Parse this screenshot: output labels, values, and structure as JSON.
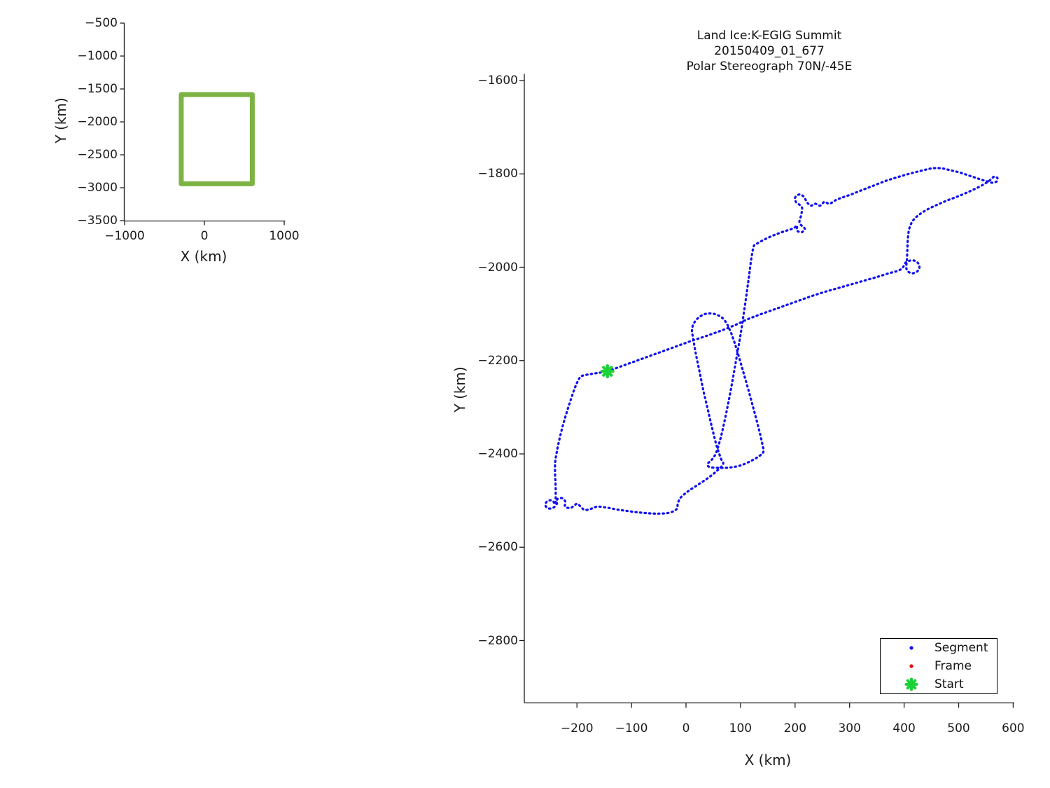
{
  "window": {
    "background": "#ffffff",
    "text_color": "#1c1c1c"
  },
  "main": {
    "title": [
      "Land Ice:K-EGIG Summit",
      "20150409_01_677",
      "Polar Stereograph 70N/-45E"
    ],
    "xlabel": "X (km)",
    "ylabel": "Y (km)"
  },
  "overview": {
    "xlabel": "X (km)",
    "ylabel": "Y (km)"
  },
  "legend": {
    "items": [
      {
        "label": "Segment",
        "marker": "dot",
        "color": "#1111EE"
      },
      {
        "label": "Frame",
        "marker": "dot",
        "color": "#E80000"
      },
      {
        "label": "Start",
        "marker": "asterisk",
        "color": "#1BD237"
      }
    ]
  },
  "chart_data": [
    {
      "id": "overview-map",
      "type": "line",
      "title": "",
      "xlabel": "X (km)",
      "ylabel": "Y (km)",
      "xlim": [
        -1000,
        1010
      ],
      "ylim": [
        -3500,
        -500
      ],
      "grid": false,
      "x_ticks": [
        {
          "value": -1000,
          "label": "−1000"
        },
        {
          "value": 0,
          "label": "0"
        },
        {
          "value": 1000,
          "label": "1000"
        }
      ],
      "y_ticks": [
        {
          "value": -500,
          "label": "−500"
        },
        {
          "value": -1000,
          "label": "−1000"
        },
        {
          "value": -1500,
          "label": "−1500"
        },
        {
          "value": -2000,
          "label": "−2000"
        },
        {
          "value": -2500,
          "label": "−2500"
        },
        {
          "value": -3000,
          "label": "−3000"
        },
        {
          "value": -3500,
          "label": "−3500"
        }
      ],
      "series": [
        {
          "name": "coverage-box",
          "color": "#7CB342",
          "linewidth": 7,
          "closed": true,
          "smooth": false,
          "dotted": false,
          "points": [
            [
              -290,
              -1585
            ],
            [
              600,
              -1585
            ],
            [
              600,
              -2940
            ],
            [
              -290,
              -2940
            ]
          ]
        }
      ]
    },
    {
      "id": "flight-track",
      "type": "scatter-line",
      "title": "Land Ice:K-EGIG Summit 20150409_01_677 Polar Stereograph 70N/-45E",
      "xlabel": "X (km)",
      "ylabel": "Y (km)",
      "xlim": [
        -297,
        602
      ],
      "ylim": [
        -2935,
        -1586
      ],
      "grid": false,
      "legend_position": "southeast",
      "x_ticks": [
        {
          "value": -200,
          "label": "−200"
        },
        {
          "value": -100,
          "label": "−100"
        },
        {
          "value": 0,
          "label": "0"
        },
        {
          "value": 100,
          "label": "100"
        },
        {
          "value": 200,
          "label": "200"
        },
        {
          "value": 300,
          "label": "300"
        },
        {
          "value": 400,
          "label": "400"
        },
        {
          "value": 500,
          "label": "500"
        },
        {
          "value": 600,
          "label": "600"
        }
      ],
      "y_ticks": [
        {
          "value": -1600,
          "label": "−1600"
        },
        {
          "value": -1800,
          "label": "−1800"
        },
        {
          "value": -2000,
          "label": "−2000"
        },
        {
          "value": -2200,
          "label": "−2200"
        },
        {
          "value": -2400,
          "label": "−2400"
        },
        {
          "value": -2600,
          "label": "−2600"
        },
        {
          "value": -2800,
          "label": "−2800"
        }
      ],
      "series": [
        {
          "name": "Segment",
          "color": "#1111EE",
          "marker": "dot",
          "dotted": true,
          "smooth": true,
          "closed": false,
          "linewidth": 3.2,
          "points": [
            [
              -144,
              -2223
            ],
            [
              -118,
              -2212
            ],
            [
              -92,
              -2201
            ],
            [
              -66,
              -2190
            ],
            [
              -40,
              -2179
            ],
            [
              -14,
              -2168
            ],
            [
              12,
              -2157
            ],
            [
              38,
              -2147
            ],
            [
              64,
              -2136
            ],
            [
              90,
              -2124
            ],
            [
              112,
              -2112
            ],
            [
              134,
              -2102
            ],
            [
              158,
              -2092
            ],
            [
              182,
              -2082
            ],
            [
              206,
              -2072
            ],
            [
              230,
              -2062
            ],
            [
              254,
              -2053
            ],
            [
              278,
              -2045
            ],
            [
              302,
              -2037
            ],
            [
              326,
              -2029
            ],
            [
              350,
              -2021
            ],
            [
              372,
              -2013
            ],
            [
              390,
              -2007
            ],
            [
              398,
              -2000
            ],
            [
              402,
              -1991
            ],
            [
              410,
              -1986
            ],
            [
              419,
              -1986
            ],
            [
              426,
              -1992
            ],
            [
              428,
              -2001
            ],
            [
              424,
              -2009
            ],
            [
              415,
              -2013
            ],
            [
              407,
              -2009
            ],
            [
              404,
              -2001
            ],
            [
              405,
              -1985
            ],
            [
              406,
              -1960
            ],
            [
              407,
              -1936
            ],
            [
              410,
              -1915
            ],
            [
              417,
              -1899
            ],
            [
              428,
              -1887
            ],
            [
              443,
              -1876
            ],
            [
              461,
              -1866
            ],
            [
              481,
              -1856
            ],
            [
              501,
              -1847
            ],
            [
              521,
              -1837
            ],
            [
              539,
              -1827
            ],
            [
              551,
              -1819
            ],
            [
              559,
              -1812
            ],
            [
              565,
              -1806
            ],
            [
              571,
              -1809
            ],
            [
              570,
              -1816
            ],
            [
              562,
              -1819
            ],
            [
              552,
              -1816
            ],
            [
              538,
              -1811
            ],
            [
              520,
              -1804
            ],
            [
              502,
              -1797
            ],
            [
              484,
              -1792
            ],
            [
              468,
              -1788
            ],
            [
              452,
              -1788
            ],
            [
              436,
              -1792
            ],
            [
              412,
              -1799
            ],
            [
              388,
              -1807
            ],
            [
              364,
              -1816
            ],
            [
              340,
              -1827
            ],
            [
              320,
              -1836
            ],
            [
              303,
              -1844
            ],
            [
              288,
              -1850
            ],
            [
              275,
              -1856
            ],
            [
              263,
              -1864
            ],
            [
              254,
              -1860
            ],
            [
              246,
              -1868
            ],
            [
              237,
              -1864
            ],
            [
              229,
              -1868
            ],
            [
              222,
              -1861
            ],
            [
              216,
              -1849
            ],
            [
              208,
              -1844
            ],
            [
              200,
              -1851
            ],
            [
              202,
              -1861
            ],
            [
              209,
              -1867
            ],
            [
              213,
              -1874
            ],
            [
              211,
              -1889
            ],
            [
              208,
              -1904
            ],
            [
              213,
              -1912
            ],
            [
              218,
              -1918
            ],
            [
              212,
              -1925
            ],
            [
              203,
              -1921
            ],
            [
              204,
              -1911
            ],
            [
              196,
              -1917
            ],
            [
              178,
              -1924
            ],
            [
              160,
              -1932
            ],
            [
              143,
              -1941
            ],
            [
              128,
              -1951
            ],
            [
              124,
              -1956
            ],
            [
              120,
              -1980
            ],
            [
              116,
              -2015
            ],
            [
              112,
              -2050
            ],
            [
              107,
              -2090
            ],
            [
              102,
              -2130
            ],
            [
              97,
              -2165
            ],
            [
              91,
              -2205
            ],
            [
              85,
              -2245
            ],
            [
              78,
              -2288
            ],
            [
              71,
              -2328
            ],
            [
              63,
              -2368
            ],
            [
              55,
              -2398
            ],
            [
              47,
              -2413
            ],
            [
              40,
              -2421
            ],
            [
              43,
              -2428
            ],
            [
              62,
              -2430
            ],
            [
              82,
              -2429
            ],
            [
              102,
              -2424
            ],
            [
              121,
              -2414
            ],
            [
              135,
              -2404
            ],
            [
              142,
              -2395
            ],
            [
              140,
              -2379
            ],
            [
              133,
              -2344
            ],
            [
              124,
              -2304
            ],
            [
              114,
              -2261
            ],
            [
              104,
              -2220
            ],
            [
              94,
              -2180
            ],
            [
              85,
              -2148
            ],
            [
              79,
              -2131
            ],
            [
              74,
              -2119
            ],
            [
              65,
              -2107
            ],
            [
              51,
              -2100
            ],
            [
              36,
              -2100
            ],
            [
              23,
              -2108
            ],
            [
              14,
              -2121
            ],
            [
              11,
              -2135
            ],
            [
              12,
              -2145
            ],
            [
              18,
              -2185
            ],
            [
              25,
              -2225
            ],
            [
              32,
              -2265
            ],
            [
              40,
              -2305
            ],
            [
              48,
              -2345
            ],
            [
              56,
              -2382
            ],
            [
              64,
              -2410
            ],
            [
              68,
              -2422
            ],
            [
              56,
              -2437
            ],
            [
              40,
              -2452
            ],
            [
              22,
              -2466
            ],
            [
              4,
              -2480
            ],
            [
              -10,
              -2494
            ],
            [
              -15,
              -2507
            ],
            [
              -17,
              -2518
            ],
            [
              -30,
              -2526
            ],
            [
              -50,
              -2528
            ],
            [
              -72,
              -2527
            ],
            [
              -97,
              -2524
            ],
            [
              -122,
              -2520
            ],
            [
              -146,
              -2515
            ],
            [
              -163,
              -2513
            ],
            [
              -175,
              -2518
            ],
            [
              -186,
              -2520
            ],
            [
              -194,
              -2512
            ],
            [
              -200,
              -2507
            ],
            [
              -206,
              -2512
            ],
            [
              -213,
              -2516
            ],
            [
              -222,
              -2513
            ],
            [
              -221,
              -2503
            ],
            [
              -227,
              -2495
            ],
            [
              -236,
              -2497
            ],
            [
              -237,
              -2507
            ],
            [
              -243,
              -2515
            ],
            [
              -252,
              -2517
            ],
            [
              -258,
              -2510
            ],
            [
              -254,
              -2501
            ],
            [
              -245,
              -2500
            ],
            [
              -240,
              -2508
            ],
            [
              -239,
              -2495
            ],
            [
              -239,
              -2470
            ],
            [
              -240,
              -2445
            ],
            [
              -240,
              -2420
            ],
            [
              -237,
              -2396
            ],
            [
              -232,
              -2368
            ],
            [
              -226,
              -2340
            ],
            [
              -219,
              -2312
            ],
            [
              -211,
              -2283
            ],
            [
              -203,
              -2256
            ],
            [
              -196,
              -2239
            ],
            [
              -191,
              -2233
            ],
            [
              -175,
              -2229
            ],
            [
              -159,
              -2226
            ],
            [
              -144,
              -2223
            ]
          ]
        },
        {
          "name": "Frame",
          "color": "#E80000",
          "marker": "dot",
          "dotted": true,
          "smooth": false,
          "closed": false,
          "linewidth": 3,
          "points": []
        },
        {
          "name": "Start",
          "color": "#1BD237",
          "marker": "asterisk",
          "dotted": false,
          "smooth": false,
          "closed": false,
          "linewidth": 4,
          "points": [
            [
              -144,
              -2223
            ]
          ]
        }
      ]
    }
  ]
}
